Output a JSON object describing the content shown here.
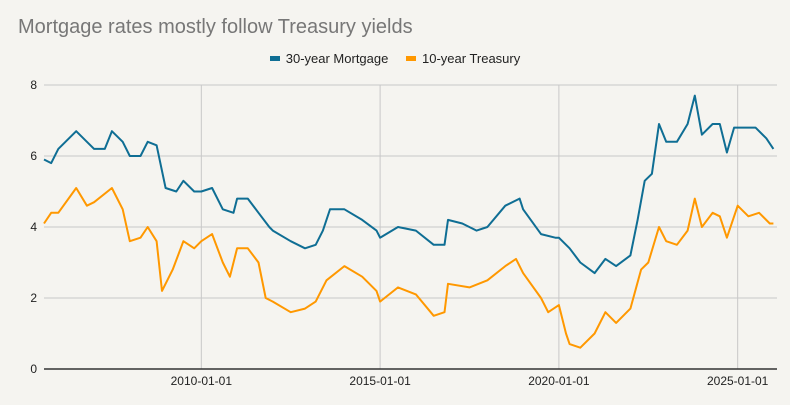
{
  "chart_data": {
    "type": "line",
    "title": "Mortgage rates mostly follow Treasury yields",
    "xlabel": "",
    "ylabel": "",
    "xlim": [
      2005.6,
      2026.1
    ],
    "ylim": [
      0,
      8
    ],
    "yticks": [
      "0",
      "2",
      "4",
      "6",
      "8"
    ],
    "xticks": [
      {
        "x": 2010,
        "label": "2010-01-01"
      },
      {
        "x": 2015,
        "label": "2015-01-01"
      },
      {
        "x": 2020,
        "label": "2020-01-01"
      },
      {
        "x": 2025,
        "label": "2025-01-01"
      }
    ],
    "grid": true,
    "legend": "top-center",
    "series": [
      {
        "name": "30-year Mortgage",
        "color": "#0f6e94",
        "points": [
          [
            2005.6,
            5.9
          ],
          [
            2005.8,
            5.8
          ],
          [
            2006,
            6.2
          ],
          [
            2006.5,
            6.7
          ],
          [
            2006.8,
            6.4
          ],
          [
            2007,
            6.2
          ],
          [
            2007.3,
            6.2
          ],
          [
            2007.5,
            6.7
          ],
          [
            2007.8,
            6.4
          ],
          [
            2008,
            6.0
          ],
          [
            2008.3,
            6.0
          ],
          [
            2008.5,
            6.4
          ],
          [
            2008.75,
            6.3
          ],
          [
            2009,
            5.1
          ],
          [
            2009.3,
            5.0
          ],
          [
            2009.5,
            5.3
          ],
          [
            2009.8,
            5.0
          ],
          [
            2010,
            5.0
          ],
          [
            2010.3,
            5.1
          ],
          [
            2010.6,
            4.5
          ],
          [
            2010.9,
            4.4
          ],
          [
            2011,
            4.8
          ],
          [
            2011.3,
            4.8
          ],
          [
            2011.6,
            4.4
          ],
          [
            2011.9,
            4.0
          ],
          [
            2012,
            3.9
          ],
          [
            2012.5,
            3.6
          ],
          [
            2012.9,
            3.4
          ],
          [
            2013.2,
            3.5
          ],
          [
            2013.4,
            3.9
          ],
          [
            2013.6,
            4.5
          ],
          [
            2014,
            4.5
          ],
          [
            2014.5,
            4.2
          ],
          [
            2014.9,
            3.9
          ],
          [
            2015,
            3.7
          ],
          [
            2015.5,
            4.0
          ],
          [
            2016,
            3.9
          ],
          [
            2016.5,
            3.5
          ],
          [
            2016.8,
            3.5
          ],
          [
            2016.9,
            4.2
          ],
          [
            2017.3,
            4.1
          ],
          [
            2017.7,
            3.9
          ],
          [
            2018,
            4.0
          ],
          [
            2018.5,
            4.6
          ],
          [
            2018.9,
            4.8
          ],
          [
            2019,
            4.5
          ],
          [
            2019.5,
            3.8
          ],
          [
            2019.9,
            3.7
          ],
          [
            2020,
            3.7
          ],
          [
            2020.3,
            3.4
          ],
          [
            2020.6,
            3.0
          ],
          [
            2021,
            2.7
          ],
          [
            2021.3,
            3.1
          ],
          [
            2021.6,
            2.9
          ],
          [
            2022,
            3.2
          ],
          [
            2022.2,
            4.2
          ],
          [
            2022.4,
            5.3
          ],
          [
            2022.6,
            5.5
          ],
          [
            2022.8,
            6.9
          ],
          [
            2023,
            6.4
          ],
          [
            2023.3,
            6.4
          ],
          [
            2023.6,
            6.9
          ],
          [
            2023.8,
            7.7
          ],
          [
            2024,
            6.6
          ],
          [
            2024.3,
            6.9
          ],
          [
            2024.5,
            6.9
          ],
          [
            2024.7,
            6.1
          ],
          [
            2024.9,
            6.8
          ],
          [
            2025.2,
            6.8
          ],
          [
            2025.5,
            6.8
          ],
          [
            2025.8,
            6.5
          ],
          [
            2026,
            6.2
          ]
        ]
      },
      {
        "name": "10-year Treasury",
        "color": "#ff9800",
        "points": [
          [
            2005.6,
            4.1
          ],
          [
            2005.8,
            4.4
          ],
          [
            2006,
            4.4
          ],
          [
            2006.5,
            5.1
          ],
          [
            2006.8,
            4.6
          ],
          [
            2007,
            4.7
          ],
          [
            2007.5,
            5.1
          ],
          [
            2007.8,
            4.5
          ],
          [
            2008,
            3.6
          ],
          [
            2008.3,
            3.7
          ],
          [
            2008.5,
            4.0
          ],
          [
            2008.75,
            3.6
          ],
          [
            2008.9,
            2.2
          ],
          [
            2009.2,
            2.8
          ],
          [
            2009.5,
            3.6
          ],
          [
            2009.8,
            3.4
          ],
          [
            2010,
            3.6
          ],
          [
            2010.3,
            3.8
          ],
          [
            2010.6,
            3.0
          ],
          [
            2010.8,
            2.6
          ],
          [
            2011,
            3.4
          ],
          [
            2011.3,
            3.4
          ],
          [
            2011.6,
            3.0
          ],
          [
            2011.8,
            2.0
          ],
          [
            2012,
            1.9
          ],
          [
            2012.5,
            1.6
          ],
          [
            2012.9,
            1.7
          ],
          [
            2013.2,
            1.9
          ],
          [
            2013.5,
            2.5
          ],
          [
            2014,
            2.9
          ],
          [
            2014.5,
            2.6
          ],
          [
            2014.9,
            2.2
          ],
          [
            2015,
            1.9
          ],
          [
            2015.5,
            2.3
          ],
          [
            2016,
            2.1
          ],
          [
            2016.5,
            1.5
          ],
          [
            2016.8,
            1.6
          ],
          [
            2016.9,
            2.4
          ],
          [
            2017.5,
            2.3
          ],
          [
            2018,
            2.5
          ],
          [
            2018.5,
            2.9
          ],
          [
            2018.8,
            3.1
          ],
          [
            2019,
            2.7
          ],
          [
            2019.5,
            2.0
          ],
          [
            2019.7,
            1.6
          ],
          [
            2020,
            1.8
          ],
          [
            2020.2,
            1.0
          ],
          [
            2020.3,
            0.7
          ],
          [
            2020.6,
            0.6
          ],
          [
            2021,
            1.0
          ],
          [
            2021.3,
            1.6
          ],
          [
            2021.6,
            1.3
          ],
          [
            2021.8,
            1.5
          ],
          [
            2022,
            1.7
          ],
          [
            2022.3,
            2.8
          ],
          [
            2022.5,
            3.0
          ],
          [
            2022.8,
            4.0
          ],
          [
            2023,
            3.6
          ],
          [
            2023.3,
            3.5
          ],
          [
            2023.6,
            3.9
          ],
          [
            2023.8,
            4.8
          ],
          [
            2024,
            4.0
          ],
          [
            2024.3,
            4.4
          ],
          [
            2024.5,
            4.3
          ],
          [
            2024.7,
            3.7
          ],
          [
            2025,
            4.6
          ],
          [
            2025.3,
            4.3
          ],
          [
            2025.6,
            4.4
          ],
          [
            2025.9,
            4.1
          ],
          [
            2026,
            4.1
          ]
        ]
      }
    ]
  }
}
